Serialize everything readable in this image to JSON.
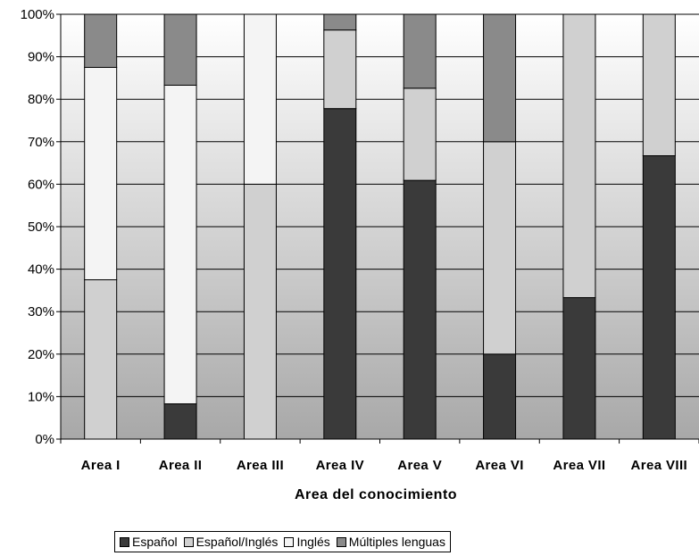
{
  "chart_data": {
    "type": "bar",
    "stacked": true,
    "percent": true,
    "categories": [
      "Area I",
      "Area II",
      "Area III",
      "Area IV",
      "Area V",
      "Area VI",
      "Area VII",
      "Area VIII"
    ],
    "series": [
      {
        "name": "Español",
        "color": "#3a3a3a",
        "values": [
          0,
          8.3,
          0,
          77.8,
          60.9,
          20,
          33.3,
          66.7
        ]
      },
      {
        "name": "Español/Inglés",
        "color": "#d0d0d0",
        "values": [
          37.5,
          0,
          60,
          18.5,
          21.7,
          50,
          66.7,
          33.3
        ]
      },
      {
        "name": "Inglés",
        "color": "#f4f4f4",
        "values": [
          50,
          75,
          40,
          0,
          0,
          0,
          0,
          0
        ]
      },
      {
        "name": "Múltiples lenguas",
        "color": "#8a8a8a",
        "values": [
          12.5,
          16.7,
          0,
          3.7,
          17.4,
          30,
          0,
          0
        ]
      }
    ],
    "yticks": [
      "0%",
      "10%",
      "20%",
      "30%",
      "40%",
      "50%",
      "60%",
      "70%",
      "80%",
      "90%",
      "100%"
    ],
    "ylim": [
      0,
      100
    ],
    "xlabel": "Area del conocimiento",
    "ylabel": "",
    "grid": true,
    "legend_position": "bottom"
  }
}
